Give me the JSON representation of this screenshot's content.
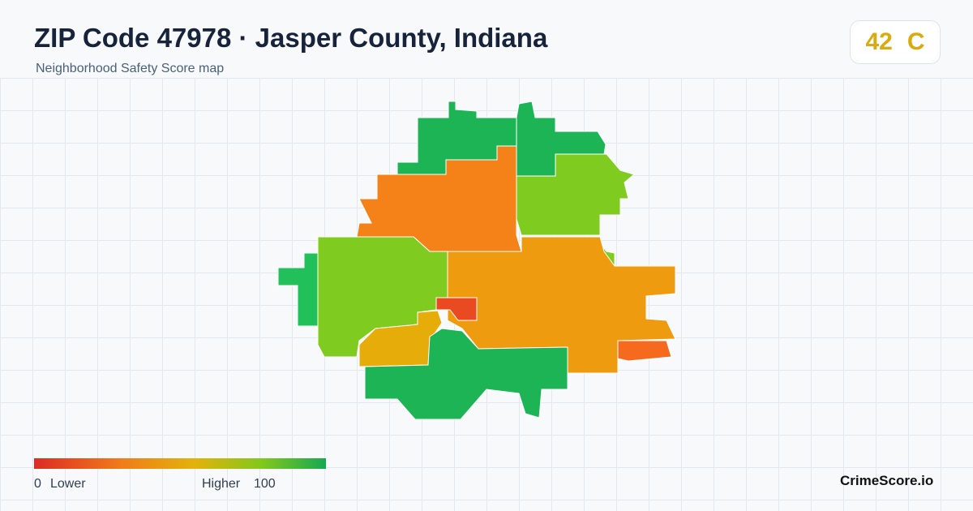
{
  "header": {
    "title": "ZIP Code 47978 · Jasper County, Indiana",
    "subtitle": "Neighborhood Safety Score map"
  },
  "score": {
    "value": 42,
    "grade": "C"
  },
  "legend": {
    "min": 0,
    "min_label": "Lower",
    "max_label": "Higher",
    "max": 100
  },
  "brand": "CrimeScore.io"
}
